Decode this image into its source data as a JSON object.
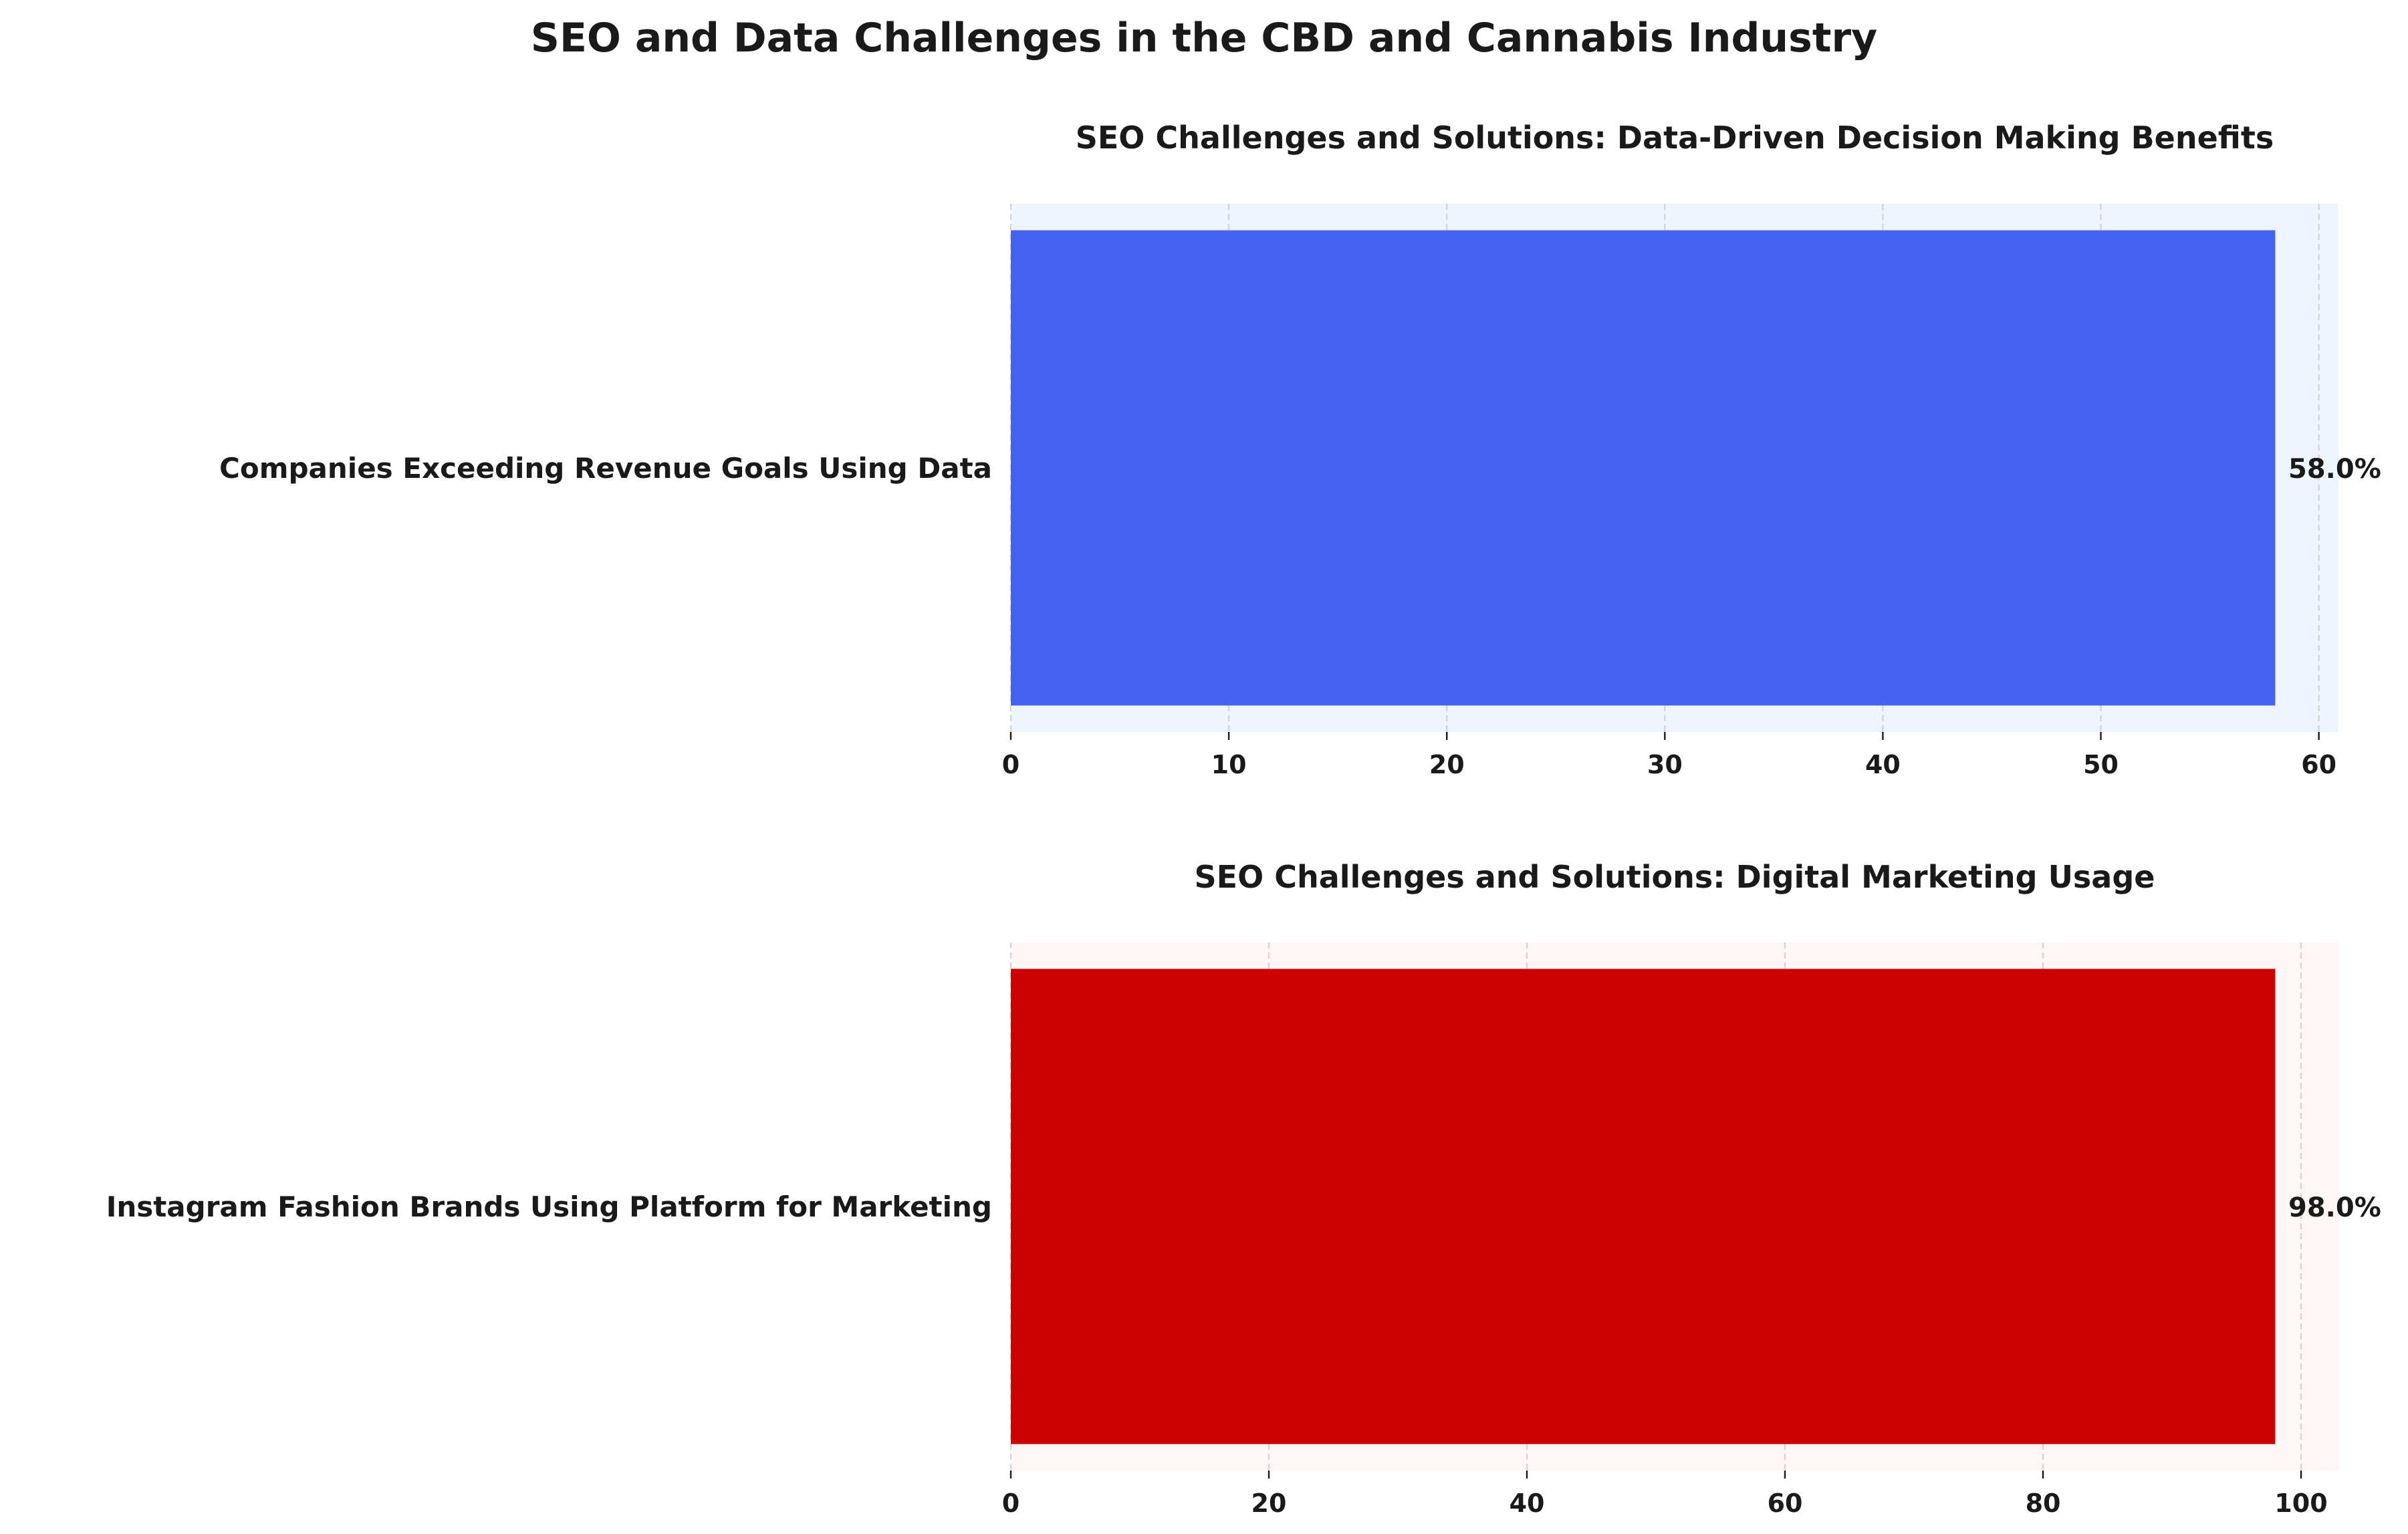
{
  "figure": {
    "suptitle": "SEO and Data Challenges in the CBD and Cannabis Industry"
  },
  "chart_data": [
    {
      "type": "bar",
      "orientation": "horizontal",
      "title": "SEO Challenges and Solutions: Data-Driven Decision Making Benefits",
      "categories": [
        "Companies Exceeding Revenue Goals Using Data"
      ],
      "values": [
        58.0
      ],
      "value_labels": [
        "58.0%"
      ],
      "xlim": [
        0,
        60.9
      ],
      "xticks": [
        0,
        10,
        20,
        30,
        40,
        50,
        60
      ],
      "grid": "x-dashed",
      "bar_color": "#4561ef",
      "background_color": "#eef5fe"
    },
    {
      "type": "bar",
      "orientation": "horizontal",
      "title": "SEO Challenges and Solutions: Digital Marketing Usage",
      "categories": [
        "Instagram Fashion Brands Using Platform for Marketing"
      ],
      "values": [
        98.0
      ],
      "value_labels": [
        "98.0%"
      ],
      "xlim": [
        0,
        102.9
      ],
      "xticks": [
        0,
        20,
        40,
        60,
        80,
        100
      ],
      "grid": "x-dashed",
      "bar_color": "#cc0000",
      "background_color": "#fef5f5"
    }
  ]
}
